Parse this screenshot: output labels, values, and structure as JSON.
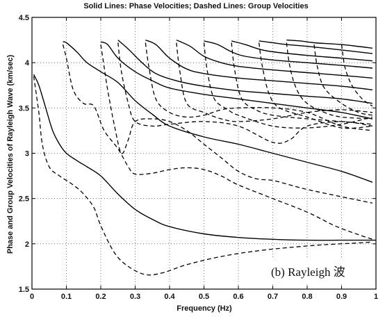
{
  "chart_data": {
    "type": "line",
    "title": "Solid Lines: Phase Velocities;  Dashed Lines: Group Velocities",
    "xlabel": "Frequency (Hz)",
    "ylabel": "Phase and Group Velocities of Rayleigh Wave (km/sec)",
    "xlim": [
      0,
      1
    ],
    "ylim": [
      1.5,
      4.5
    ],
    "x_ticks": [
      "0",
      "0.1",
      "0.2",
      "0.3",
      "0.4",
      "0.5",
      "0.6",
      "0.7",
      "0.8",
      "0.9",
      "1"
    ],
    "y_ticks": [
      "1.5",
      "2",
      "2.5",
      "3",
      "3.5",
      "4",
      "4.5"
    ],
    "grid": true,
    "annotation": "(b) Rayleigh 波",
    "series": [
      {
        "style": "solid",
        "points": [
          [
            0.005,
            3.87
          ],
          [
            0.02,
            3.75
          ],
          [
            0.04,
            3.5
          ],
          [
            0.06,
            3.25
          ],
          [
            0.08,
            3.1
          ],
          [
            0.1,
            3.0
          ],
          [
            0.13,
            2.92
          ],
          [
            0.16,
            2.85
          ],
          [
            0.2,
            2.75
          ],
          [
            0.25,
            2.55
          ],
          [
            0.3,
            2.38
          ],
          [
            0.35,
            2.27
          ],
          [
            0.4,
            2.19
          ],
          [
            0.5,
            2.11
          ],
          [
            0.6,
            2.07
          ],
          [
            0.7,
            2.05
          ],
          [
            0.8,
            2.04
          ],
          [
            0.9,
            2.04
          ],
          [
            1.0,
            2.04
          ]
        ]
      },
      {
        "style": "solid",
        "points": [
          [
            0.09,
            4.23
          ],
          [
            0.1,
            4.22
          ],
          [
            0.13,
            4.12
          ],
          [
            0.16,
            4.0
          ],
          [
            0.2,
            3.9
          ],
          [
            0.25,
            3.78
          ],
          [
            0.3,
            3.58
          ],
          [
            0.35,
            3.43
          ],
          [
            0.4,
            3.3
          ],
          [
            0.5,
            3.18
          ],
          [
            0.6,
            3.1
          ],
          [
            0.7,
            3.0
          ],
          [
            0.8,
            2.9
          ],
          [
            0.9,
            2.8
          ],
          [
            0.99,
            2.68
          ]
        ]
      },
      {
        "style": "solid",
        "points": [
          [
            0.2,
            4.23
          ],
          [
            0.22,
            4.2
          ],
          [
            0.25,
            4.05
          ],
          [
            0.3,
            3.9
          ],
          [
            0.35,
            3.8
          ],
          [
            0.4,
            3.72
          ],
          [
            0.5,
            3.65
          ],
          [
            0.6,
            3.6
          ],
          [
            0.7,
            3.55
          ],
          [
            0.8,
            3.5
          ],
          [
            0.9,
            3.45
          ],
          [
            0.99,
            3.38
          ]
        ]
      },
      {
        "style": "solid",
        "points": [
          [
            0.25,
            4.25
          ],
          [
            0.28,
            4.15
          ],
          [
            0.32,
            4.0
          ],
          [
            0.36,
            3.88
          ],
          [
            0.42,
            3.8
          ],
          [
            0.5,
            3.74
          ],
          [
            0.6,
            3.69
          ],
          [
            0.7,
            3.66
          ],
          [
            0.8,
            3.63
          ],
          [
            0.9,
            3.6
          ],
          [
            0.99,
            3.55
          ]
        ]
      },
      {
        "style": "solid",
        "points": [
          [
            0.33,
            4.25
          ],
          [
            0.36,
            4.2
          ],
          [
            0.4,
            4.05
          ],
          [
            0.45,
            3.93
          ],
          [
            0.5,
            3.88
          ],
          [
            0.6,
            3.83
          ],
          [
            0.7,
            3.8
          ],
          [
            0.8,
            3.77
          ],
          [
            0.9,
            3.74
          ],
          [
            0.99,
            3.7
          ]
        ]
      },
      {
        "style": "solid",
        "points": [
          [
            0.42,
            4.25
          ],
          [
            0.46,
            4.18
          ],
          [
            0.5,
            4.07
          ],
          [
            0.55,
            4.0
          ],
          [
            0.6,
            3.96
          ],
          [
            0.7,
            3.92
          ],
          [
            0.8,
            3.89
          ],
          [
            0.9,
            3.86
          ],
          [
            0.99,
            3.83
          ]
        ]
      },
      {
        "style": "solid",
        "points": [
          [
            0.5,
            4.24
          ],
          [
            0.54,
            4.2
          ],
          [
            0.58,
            4.12
          ],
          [
            0.62,
            4.07
          ],
          [
            0.7,
            4.03
          ],
          [
            0.8,
            4.0
          ],
          [
            0.9,
            3.97
          ],
          [
            0.99,
            3.94
          ]
        ]
      },
      {
        "style": "solid",
        "points": [
          [
            0.58,
            4.24
          ],
          [
            0.62,
            4.2
          ],
          [
            0.66,
            4.15
          ],
          [
            0.7,
            4.12
          ],
          [
            0.8,
            4.08
          ],
          [
            0.9,
            4.05
          ],
          [
            0.99,
            4.02
          ]
        ]
      },
      {
        "style": "solid",
        "points": [
          [
            0.66,
            4.24
          ],
          [
            0.7,
            4.22
          ],
          [
            0.74,
            4.2
          ],
          [
            0.8,
            4.18
          ],
          [
            0.9,
            4.14
          ],
          [
            0.99,
            4.1
          ]
        ]
      },
      {
        "style": "solid",
        "points": [
          [
            0.74,
            4.25
          ],
          [
            0.78,
            4.24
          ],
          [
            0.82,
            4.22
          ],
          [
            0.9,
            4.2
          ],
          [
            0.99,
            4.16
          ]
        ]
      },
      {
        "style": "dashed",
        "points": [
          [
            0.005,
            3.85
          ],
          [
            0.02,
            3.45
          ],
          [
            0.03,
            3.1
          ],
          [
            0.05,
            2.85
          ],
          [
            0.08,
            2.75
          ],
          [
            0.12,
            2.65
          ],
          [
            0.15,
            2.55
          ],
          [
            0.18,
            2.4
          ],
          [
            0.2,
            2.2
          ],
          [
            0.24,
            1.9
          ],
          [
            0.28,
            1.75
          ],
          [
            0.33,
            1.66
          ],
          [
            0.38,
            1.68
          ],
          [
            0.45,
            1.77
          ],
          [
            0.55,
            1.86
          ],
          [
            0.65,
            1.92
          ],
          [
            0.75,
            1.96
          ],
          [
            0.85,
            1.99
          ],
          [
            0.95,
            2.01
          ],
          [
            0.99,
            2.02
          ]
        ]
      },
      {
        "style": "dashed",
        "points": [
          [
            0.09,
            4.2
          ],
          [
            0.1,
            4.05
          ],
          [
            0.12,
            3.7
          ],
          [
            0.15,
            3.55
          ],
          [
            0.18,
            3.52
          ],
          [
            0.21,
            3.25
          ],
          [
            0.25,
            3.05
          ],
          [
            0.28,
            2.85
          ],
          [
            0.3,
            2.77
          ],
          [
            0.35,
            2.78
          ],
          [
            0.4,
            2.82
          ],
          [
            0.45,
            2.84
          ],
          [
            0.5,
            2.82
          ],
          [
            0.55,
            2.75
          ],
          [
            0.6,
            2.65
          ],
          [
            0.7,
            2.5
          ],
          [
            0.8,
            2.35
          ],
          [
            0.88,
            2.2
          ],
          [
            0.95,
            2.1
          ],
          [
            0.99,
            2.05
          ]
        ]
      },
      {
        "style": "dashed",
        "points": [
          [
            0.2,
            4.2
          ],
          [
            0.21,
            3.95
          ],
          [
            0.22,
            3.7
          ],
          [
            0.24,
            3.3
          ],
          [
            0.26,
            3.0
          ],
          [
            0.28,
            3.15
          ],
          [
            0.3,
            3.35
          ],
          [
            0.35,
            3.38
          ],
          [
            0.4,
            3.35
          ],
          [
            0.45,
            3.25
          ],
          [
            0.5,
            3.1
          ],
          [
            0.55,
            2.95
          ],
          [
            0.6,
            2.8
          ],
          [
            0.65,
            2.72
          ],
          [
            0.7,
            2.7
          ],
          [
            0.75,
            2.65
          ],
          [
            0.8,
            2.6
          ],
          [
            0.9,
            2.52
          ],
          [
            0.99,
            2.45
          ]
        ]
      },
      {
        "style": "dashed",
        "points": [
          [
            0.25,
            4.22
          ],
          [
            0.26,
            3.9
          ],
          [
            0.28,
            3.55
          ],
          [
            0.3,
            3.35
          ],
          [
            0.35,
            3.3
          ],
          [
            0.4,
            3.32
          ],
          [
            0.5,
            3.35
          ],
          [
            0.6,
            3.3
          ],
          [
            0.7,
            3.12
          ],
          [
            0.75,
            3.15
          ],
          [
            0.8,
            3.3
          ],
          [
            0.9,
            3.35
          ],
          [
            0.99,
            3.3
          ]
        ]
      },
      {
        "style": "dashed",
        "points": [
          [
            0.33,
            4.22
          ],
          [
            0.34,
            3.95
          ],
          [
            0.36,
            3.6
          ],
          [
            0.4,
            3.45
          ],
          [
            0.45,
            3.4
          ],
          [
            0.5,
            3.42
          ],
          [
            0.55,
            3.48
          ],
          [
            0.6,
            3.5
          ],
          [
            0.7,
            3.5
          ],
          [
            0.8,
            3.45
          ],
          [
            0.9,
            3.3
          ],
          [
            0.99,
            3.25
          ]
        ]
      },
      {
        "style": "dashed",
        "points": [
          [
            0.42,
            4.22
          ],
          [
            0.43,
            3.9
          ],
          [
            0.45,
            3.55
          ],
          [
            0.5,
            3.45
          ],
          [
            0.55,
            3.38
          ],
          [
            0.6,
            3.35
          ],
          [
            0.7,
            3.38
          ],
          [
            0.8,
            3.45
          ],
          [
            0.9,
            3.48
          ],
          [
            0.99,
            3.45
          ]
        ]
      },
      {
        "style": "dashed",
        "points": [
          [
            0.5,
            4.22
          ],
          [
            0.51,
            3.9
          ],
          [
            0.53,
            3.6
          ],
          [
            0.57,
            3.48
          ],
          [
            0.6,
            3.42
          ],
          [
            0.7,
            3.3
          ],
          [
            0.8,
            3.28
          ],
          [
            0.9,
            3.32
          ],
          [
            0.99,
            3.4
          ]
        ]
      },
      {
        "style": "dashed",
        "points": [
          [
            0.58,
            4.22
          ],
          [
            0.59,
            3.9
          ],
          [
            0.61,
            3.6
          ],
          [
            0.65,
            3.48
          ],
          [
            0.7,
            3.42
          ],
          [
            0.8,
            3.38
          ],
          [
            0.9,
            3.35
          ],
          [
            0.99,
            3.32
          ]
        ]
      },
      {
        "style": "dashed",
        "points": [
          [
            0.66,
            4.22
          ],
          [
            0.67,
            3.95
          ],
          [
            0.69,
            3.65
          ],
          [
            0.72,
            3.5
          ],
          [
            0.8,
            3.4
          ],
          [
            0.9,
            3.28
          ],
          [
            0.99,
            3.3
          ]
        ]
      },
      {
        "style": "dashed",
        "points": [
          [
            0.74,
            4.22
          ],
          [
            0.75,
            3.95
          ],
          [
            0.77,
            3.7
          ],
          [
            0.8,
            3.55
          ],
          [
            0.85,
            3.45
          ],
          [
            0.9,
            3.4
          ],
          [
            0.99,
            3.38
          ]
        ]
      },
      {
        "style": "dashed",
        "points": [
          [
            0.82,
            4.2
          ],
          [
            0.83,
            3.95
          ],
          [
            0.85,
            3.72
          ],
          [
            0.9,
            3.55
          ],
          [
            0.95,
            3.45
          ],
          [
            0.99,
            3.42
          ]
        ]
      },
      {
        "style": "dashed",
        "points": [
          [
            0.9,
            4.2
          ],
          [
            0.91,
            3.95
          ],
          [
            0.93,
            3.75
          ],
          [
            0.96,
            3.6
          ],
          [
            0.99,
            3.52
          ]
        ]
      }
    ]
  }
}
